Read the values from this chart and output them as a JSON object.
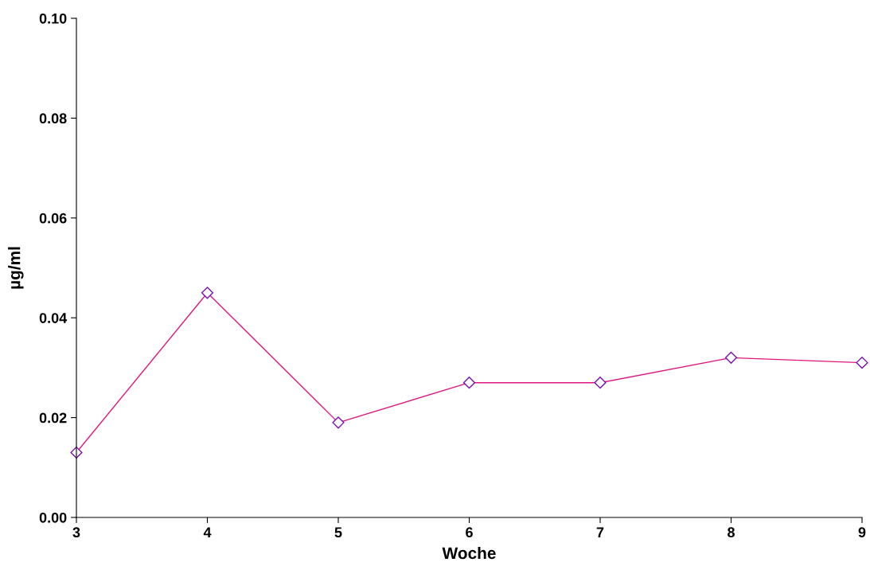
{
  "chart_data": {
    "type": "line",
    "xlabel": "Woche",
    "ylabel": "µg/ml",
    "x": [
      3,
      4,
      5,
      6,
      7,
      8,
      9
    ],
    "series": [
      {
        "color": "#e0157f",
        "values": [
          0.013,
          0.045,
          0.019,
          0.027,
          0.027,
          0.032,
          0.031
        ]
      }
    ],
    "xlim": [
      3,
      9
    ],
    "xticks": [
      3,
      4,
      5,
      6,
      7,
      8,
      9
    ],
    "ylim": [
      0,
      0.1
    ],
    "yticks": [
      {
        "value": 0,
        "label": "0.00"
      },
      {
        "value": 0.02,
        "label": "0.02"
      },
      {
        "value": 0.04,
        "label": "0.04"
      },
      {
        "value": 0.06,
        "label": "0.06"
      },
      {
        "value": 0.08,
        "label": "0.08"
      },
      {
        "value": 0.1,
        "label": "0.10"
      }
    ],
    "marker": "diamond",
    "line_style": "solid",
    "grid": false,
    "legend": false
  }
}
